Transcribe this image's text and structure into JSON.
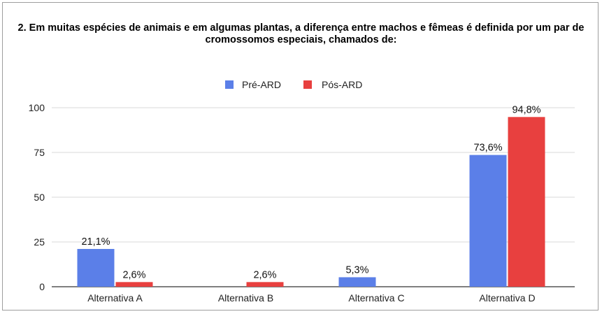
{
  "chart_data": {
    "type": "bar",
    "title": "2. Em muitas espécies de animais e em algumas plantas, a diferença entre machos e fêmeas é definida por um par de cromossomos especiais, chamados de:",
    "categories": [
      "Alternativa A",
      "Alternativa B",
      "Alternativa C",
      "Alternativa D"
    ],
    "series": [
      {
        "name": "Pré-ARD",
        "color": "#5b7fe8",
        "values": [
          21.1,
          0,
          5.3,
          73.6
        ],
        "labels": [
          "21,1%",
          "",
          "5,3%",
          "73,6%"
        ]
      },
      {
        "name": "Pós-ARD",
        "color": "#e8403f",
        "values": [
          2.6,
          2.6,
          0,
          94.8
        ],
        "labels": [
          "2,6%",
          "2,6%",
          "",
          "94,8%"
        ]
      }
    ],
    "yticks": [
      "0",
      "25",
      "50",
      "75",
      "100"
    ],
    "ylim": [
      0,
      100
    ],
    "xlabel": "",
    "ylabel": "",
    "grid": true,
    "legend_position": "top-center"
  }
}
